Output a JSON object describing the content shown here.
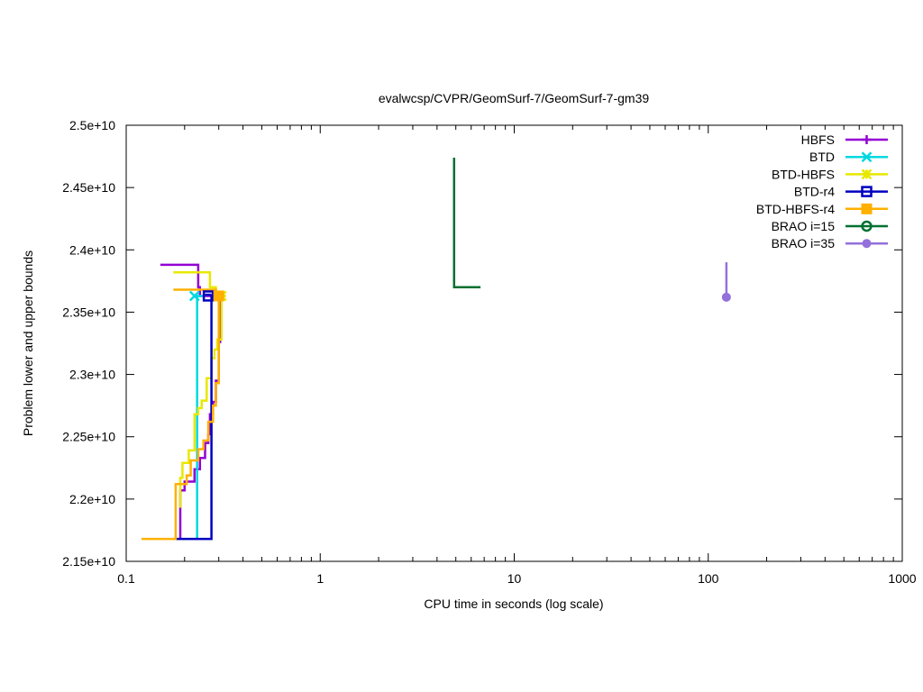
{
  "chart_data": {
    "type": "line",
    "title": "evalwcsp/CVPR/GeomSurf-7/GeomSurf-7-gm39",
    "xlabel": "CPU time in seconds (log scale)",
    "ylabel": "Problem lower and upper bounds",
    "x_scale": "log",
    "xlim": [
      0.1,
      1000
    ],
    "ylim": [
      21500000000,
      25000000000
    ],
    "x_ticks": [
      {
        "value": 0.1,
        "label": "0.1"
      },
      {
        "value": 1,
        "label": "1"
      },
      {
        "value": 10,
        "label": "10"
      },
      {
        "value": 100,
        "label": "100"
      },
      {
        "value": 1000,
        "label": "1000"
      }
    ],
    "y_ticks": [
      {
        "value": 21500000000,
        "label": "2.15e+10"
      },
      {
        "value": 22000000000,
        "label": "2.2e+10"
      },
      {
        "value": 22500000000,
        "label": "2.25e+10"
      },
      {
        "value": 23000000000,
        "label": "2.3e+10"
      },
      {
        "value": 23500000000,
        "label": "2.35e+10"
      },
      {
        "value": 24000000000,
        "label": "2.4e+10"
      },
      {
        "value": 24500000000,
        "label": "2.45e+10"
      },
      {
        "value": 25000000000,
        "label": "2.5e+10"
      }
    ],
    "legend_position": "top-right",
    "grid": false,
    "series": [
      {
        "name": "HBFS",
        "color": "#9400d3",
        "marker": "plus",
        "upper": [
          [
            0.15,
            23880000000
          ],
          [
            0.235,
            23880000000
          ],
          [
            0.235,
            23700000000
          ],
          [
            0.24,
            23700000000
          ],
          [
            0.24,
            23630000000
          ],
          [
            0.3,
            23630000000
          ]
        ],
        "lower": [
          [
            0.19,
            21680000000
          ],
          [
            0.19,
            22070000000
          ],
          [
            0.2,
            22070000000
          ],
          [
            0.2,
            22140000000
          ],
          [
            0.225,
            22140000000
          ],
          [
            0.225,
            22240000000
          ],
          [
            0.24,
            22240000000
          ],
          [
            0.24,
            22330000000
          ],
          [
            0.255,
            22330000000
          ],
          [
            0.255,
            22450000000
          ],
          [
            0.265,
            22450000000
          ],
          [
            0.265,
            22520000000
          ],
          [
            0.27,
            22520000000
          ],
          [
            0.27,
            22680000000
          ],
          [
            0.28,
            22680000000
          ],
          [
            0.28,
            22780000000
          ],
          [
            0.29,
            22780000000
          ],
          [
            0.29,
            22950000000
          ],
          [
            0.3,
            22950000000
          ],
          [
            0.3,
            23260000000
          ],
          [
            0.305,
            23260000000
          ],
          [
            0.305,
            23630000000
          ]
        ],
        "marker_points": [
          [
            0.305,
            23630000000
          ]
        ]
      },
      {
        "name": "BTD",
        "color": "#00d8e0",
        "marker": "x",
        "upper": [
          [
            0.225,
            23630000000
          ],
          [
            0.255,
            23630000000
          ]
        ],
        "lower": [
          [
            0.232,
            21680000000
          ],
          [
            0.232,
            23630000000
          ]
        ],
        "marker_points": [
          [
            0.225,
            23630000000
          ]
        ]
      },
      {
        "name": "BTD-HBFS",
        "color": "#e8e800",
        "marker": "star",
        "upper": [
          [
            0.175,
            23820000000
          ],
          [
            0.27,
            23820000000
          ],
          [
            0.27,
            23700000000
          ],
          [
            0.29,
            23700000000
          ],
          [
            0.29,
            23630000000
          ],
          [
            0.31,
            23630000000
          ]
        ],
        "lower": [
          [
            0.19,
            21930000000
          ],
          [
            0.19,
            22170000000
          ],
          [
            0.195,
            22170000000
          ],
          [
            0.195,
            22290000000
          ],
          [
            0.21,
            22290000000
          ],
          [
            0.21,
            22390000000
          ],
          [
            0.225,
            22390000000
          ],
          [
            0.225,
            22680000000
          ],
          [
            0.235,
            22680000000
          ],
          [
            0.235,
            22730000000
          ],
          [
            0.245,
            22730000000
          ],
          [
            0.245,
            22790000000
          ],
          [
            0.26,
            22790000000
          ],
          [
            0.26,
            22970000000
          ],
          [
            0.275,
            22970000000
          ],
          [
            0.275,
            23130000000
          ],
          [
            0.285,
            23130000000
          ],
          [
            0.285,
            23200000000
          ],
          [
            0.295,
            23200000000
          ],
          [
            0.295,
            23280000000
          ],
          [
            0.31,
            23280000000
          ],
          [
            0.31,
            23630000000
          ]
        ],
        "marker_points": [
          [
            0.31,
            23630000000
          ]
        ]
      },
      {
        "name": "BTD-r4",
        "color": "#0000c0",
        "marker": "square-open",
        "upper": [
          [
            0.255,
            23640000000
          ],
          [
            0.275,
            23640000000
          ]
        ],
        "lower": [
          [
            0.18,
            21680000000
          ],
          [
            0.275,
            21680000000
          ],
          [
            0.275,
            23640000000
          ]
        ],
        "marker_points": [
          [
            0.265,
            23630000000
          ]
        ]
      },
      {
        "name": "BTD-HBFS-r4",
        "color": "#ffb000",
        "marker": "square-filled",
        "upper": [
          [
            0.175,
            23680000000
          ],
          [
            0.29,
            23680000000
          ],
          [
            0.29,
            23630000000
          ],
          [
            0.3,
            23630000000
          ]
        ],
        "lower": [
          [
            0.12,
            21680000000
          ],
          [
            0.18,
            21680000000
          ],
          [
            0.18,
            22120000000
          ],
          [
            0.205,
            22120000000
          ],
          [
            0.205,
            22190000000
          ],
          [
            0.215,
            22190000000
          ],
          [
            0.215,
            22310000000
          ],
          [
            0.235,
            22310000000
          ],
          [
            0.235,
            22400000000
          ],
          [
            0.25,
            22400000000
          ],
          [
            0.25,
            22470000000
          ],
          [
            0.265,
            22470000000
          ],
          [
            0.265,
            22620000000
          ],
          [
            0.28,
            22620000000
          ],
          [
            0.28,
            22750000000
          ],
          [
            0.29,
            22750000000
          ],
          [
            0.29,
            22930000000
          ],
          [
            0.3,
            22930000000
          ],
          [
            0.3,
            23630000000
          ]
        ],
        "marker_points": [
          [
            0.3,
            23630000000
          ]
        ]
      },
      {
        "name": "BRAO i=15",
        "color": "#007030",
        "marker": "circle-open",
        "upper": [
          [
            4.9,
            24740000000
          ],
          [
            4.9,
            23700000000
          ],
          [
            6.7,
            23700000000
          ]
        ],
        "lower": [],
        "marker_points": []
      },
      {
        "name": "BRAO i=35",
        "color": "#9370db",
        "marker": "circle-filled",
        "upper": [
          [
            124,
            23900000000
          ],
          [
            124,
            23620000000
          ]
        ],
        "lower": [],
        "marker_points": [
          [
            124,
            23620000000
          ]
        ]
      }
    ]
  }
}
